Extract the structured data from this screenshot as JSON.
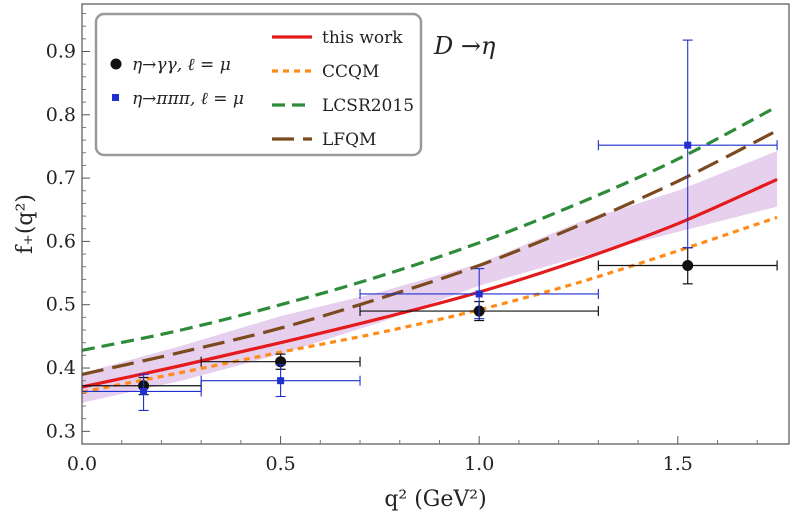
{
  "chart_data": {
    "type": "line",
    "xlabel": "q² (GeV²)",
    "ylabel": "f₊(q²)",
    "xlim": [
      0.0,
      1.78
    ],
    "ylim": [
      0.28,
      0.975
    ],
    "x_ticks": [
      "0.0",
      "0.5",
      "1.0",
      "1.5"
    ],
    "x_tick_values": [
      0.0,
      0.5,
      1.0,
      1.5
    ],
    "y_ticks": [
      "0.3",
      "0.4",
      "0.5",
      "0.6",
      "0.7",
      "0.8",
      "0.9"
    ],
    "y_tick_values": [
      0.3,
      0.4,
      0.5,
      0.6,
      0.7,
      0.8,
      0.9
    ],
    "grid": false,
    "legend_position": "top-left",
    "annotation": "D →η",
    "band": {
      "name": "this work uncertainty",
      "color": "#e3c8ea",
      "x": [
        0.0,
        0.25,
        0.5,
        0.75,
        1.0,
        1.25,
        1.5,
        1.75
      ],
      "lower": [
        0.345,
        0.38,
        0.422,
        0.472,
        0.53,
        0.575,
        0.615,
        0.655
      ],
      "upper": [
        0.392,
        0.435,
        0.482,
        0.52,
        0.565,
        0.63,
        0.68,
        0.743
      ]
    },
    "series": [
      {
        "name": "this work",
        "color": "#e41a1c",
        "style": "solid",
        "width": 3.2,
        "x": [
          0.0,
          0.25,
          0.5,
          0.75,
          1.0,
          1.25,
          1.5,
          1.75
        ],
        "y": [
          0.37,
          0.404,
          0.44,
          0.478,
          0.52,
          0.57,
          0.628,
          0.698
        ]
      },
      {
        "name": "CCQM",
        "color": "#ff8c1a",
        "style": "dotted",
        "width": 3.2,
        "x": [
          0.0,
          0.25,
          0.5,
          0.75,
          1.0,
          1.25,
          1.5,
          1.75
        ],
        "y": [
          0.362,
          0.393,
          0.425,
          0.456,
          0.492,
          0.535,
          0.585,
          0.638
        ]
      },
      {
        "name": "LCSR2015",
        "color": "#2e8b3a",
        "style": "dashed",
        "width": 3.2,
        "x": [
          0.0,
          0.25,
          0.5,
          0.75,
          1.0,
          1.25,
          1.5,
          1.75
        ],
        "y": [
          0.428,
          0.46,
          0.5,
          0.545,
          0.598,
          0.66,
          0.73,
          0.813
        ]
      },
      {
        "name": "LFQM",
        "color": "#7b4a1e",
        "style": "longdash",
        "width": 3.2,
        "x": [
          0.0,
          0.25,
          0.5,
          0.75,
          1.0,
          1.25,
          1.5,
          1.75
        ],
        "y": [
          0.39,
          0.425,
          0.463,
          0.51,
          0.562,
          0.625,
          0.695,
          0.775
        ]
      }
    ],
    "data_points": [
      {
        "name": "η→γγ, ℓ = μ",
        "color": "#111111",
        "marker": "circle",
        "points": [
          {
            "x": 0.155,
            "y": 0.372,
            "xlo": 0.0,
            "xhi": 0.3,
            "ylo": 0.358,
            "yhi": 0.385
          },
          {
            "x": 0.5,
            "y": 0.41,
            "xlo": 0.3,
            "xhi": 0.7,
            "ylo": 0.398,
            "yhi": 0.422
          },
          {
            "x": 1.0,
            "y": 0.49,
            "xlo": 0.7,
            "xhi": 1.3,
            "ylo": 0.475,
            "yhi": 0.505
          },
          {
            "x": 1.525,
            "y": 0.562,
            "xlo": 1.3,
            "xhi": 1.75,
            "ylo": 0.533,
            "yhi": 0.59
          }
        ]
      },
      {
        "name": "η→πππ, ℓ = μ",
        "color": "#1f2fd0",
        "marker": "square",
        "points": [
          {
            "x": 0.155,
            "y": 0.363,
            "xlo": 0.0,
            "xhi": 0.3,
            "ylo": 0.333,
            "yhi": 0.39
          },
          {
            "x": 0.5,
            "y": 0.38,
            "xlo": 0.3,
            "xhi": 0.7,
            "ylo": 0.355,
            "yhi": 0.405
          },
          {
            "x": 1.0,
            "y": 0.517,
            "xlo": 0.7,
            "xhi": 1.3,
            "ylo": 0.478,
            "yhi": 0.557
          },
          {
            "x": 1.525,
            "y": 0.752,
            "xlo": 1.3,
            "xhi": 1.75,
            "ylo": 0.59,
            "yhi": 0.918
          }
        ]
      }
    ]
  }
}
